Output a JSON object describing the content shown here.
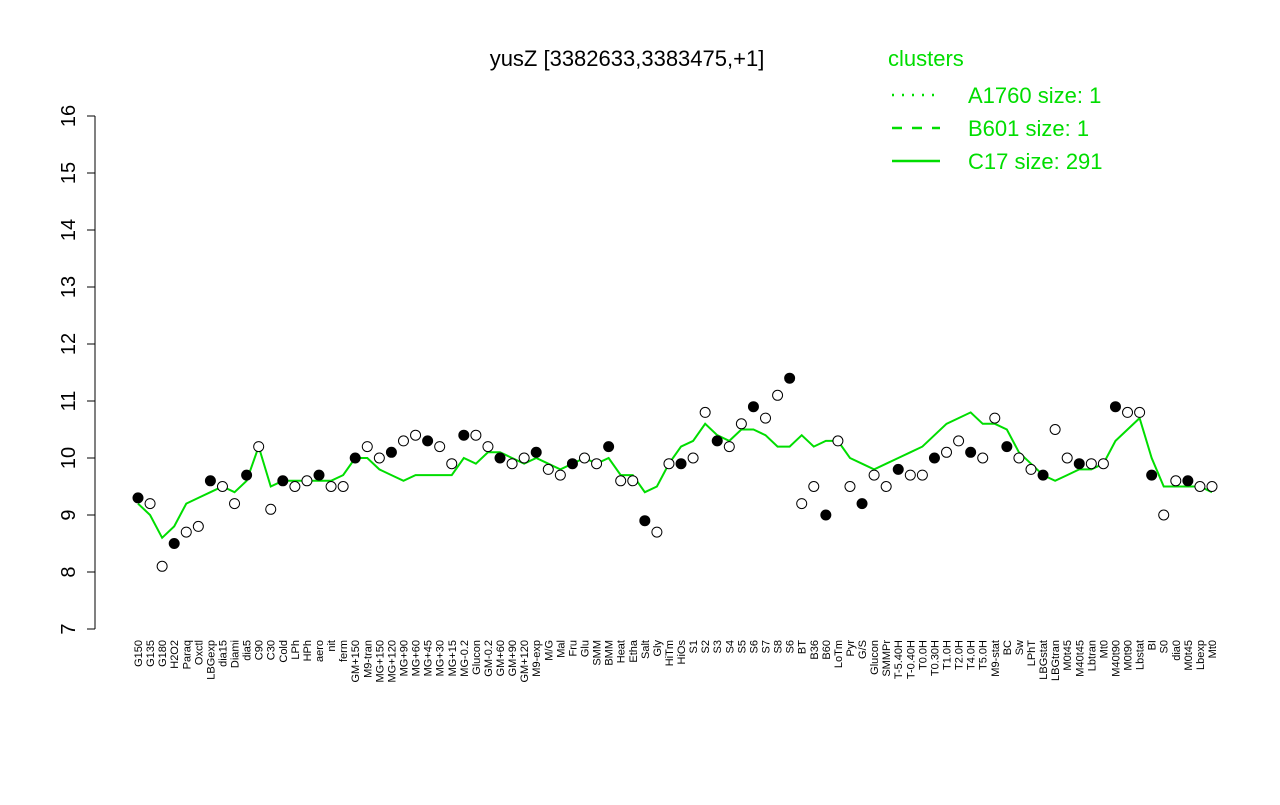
{
  "chart_data": {
    "type": "line",
    "title": "yusZ [3382633,3383475,+1]",
    "legend_title": "clusters",
    "legend": [
      {
        "name": "A1760 size: 1",
        "style": "dotted"
      },
      {
        "name": "B601 size: 1",
        "style": "dashed"
      },
      {
        "name": "C17 size: 291",
        "style": "solid"
      }
    ],
    "color": "#00dd00",
    "point_color": "#000000",
    "categories": [
      "G150",
      "G135",
      "G180",
      "H2O2",
      "Paraq",
      "Oxctl",
      "LBGexp",
      "dia15",
      "Diami",
      "dia5",
      "C90",
      "C30",
      "Cold",
      "LPh",
      "HPh",
      "aero",
      "nit",
      "ferm",
      "GM+150",
      "M9-tran",
      "MG+150",
      "MG+120",
      "MG+90",
      "MG+60",
      "MG+45",
      "MG+30",
      "MG+15",
      "MG-0.2",
      "Glucon",
      "GM-0.2",
      "GM+60",
      "GM+90",
      "GM+120",
      "M9-exp",
      "M/G",
      "Mal",
      "Fru",
      "Glu",
      "SMM",
      "BMM",
      "Heat",
      "Etha",
      "Salt",
      "Gly",
      "HiTm",
      "HiOs",
      "S1",
      "S2",
      "S3",
      "S4",
      "S5",
      "S6",
      "S7",
      "S8",
      "S6",
      "BT",
      "B36",
      "B60",
      "LoTm",
      "Pyr",
      "G/S",
      "Glucon",
      "SMMPr",
      "T-5.40H",
      "T-0.40H",
      "T0.0H",
      "T0.30H",
      "T1.0H",
      "T2.0H",
      "T4.0H",
      "T5.0H",
      "M9-stat",
      "BC",
      "Sw",
      "LPhT",
      "LBGstat",
      "LBGtran",
      "M0t45",
      "M40t45",
      "Lbtran",
      "Mt0",
      "M40t90",
      "M0t90",
      "Lbstat",
      "BI",
      "S0",
      "dia0",
      "M0t45",
      "Lbexp",
      "Mt0"
    ],
    "values": [
      9.3,
      9.2,
      8.1,
      8.5,
      8.7,
      8.8,
      9.6,
      9.5,
      9.2,
      9.7,
      10.2,
      9.1,
      9.6,
      9.5,
      9.6,
      9.7,
      9.5,
      9.5,
      10.0,
      10.2,
      10.0,
      10.1,
      10.3,
      10.4,
      10.3,
      10.2,
      9.9,
      10.4,
      10.4,
      10.2,
      10.0,
      9.9,
      10.0,
      10.1,
      9.8,
      9.7,
      9.9,
      10.0,
      9.9,
      10.2,
      9.6,
      9.6,
      8.9,
      8.7,
      9.9,
      9.9,
      10.0,
      10.8,
      10.3,
      10.2,
      10.6,
      10.9,
      10.7,
      11.1,
      11.4,
      9.2,
      9.5,
      9.0,
      10.3,
      9.5,
      9.2,
      9.7,
      9.5,
      9.8,
      9.7,
      9.7,
      10.0,
      10.1,
      10.3,
      10.1,
      10.0,
      10.7,
      10.2,
      10.0,
      9.8,
      9.7,
      10.5,
      10.0,
      9.9,
      9.9,
      9.9,
      10.9,
      10.8,
      10.8,
      9.7,
      9.0,
      9.6,
      9.6,
      9.5,
      9.5
    ],
    "series": [
      {
        "name": "C17 size: 291",
        "values": [
          9.2,
          9.0,
          8.6,
          8.8,
          9.2,
          9.3,
          9.4,
          9.5,
          9.4,
          9.6,
          10.2,
          9.5,
          9.6,
          9.6,
          9.6,
          9.6,
          9.6,
          9.7,
          10.0,
          10.0,
          9.8,
          9.7,
          9.6,
          9.7,
          9.7,
          9.7,
          9.7,
          10.0,
          9.9,
          10.1,
          10.1,
          10.0,
          9.9,
          10.0,
          9.9,
          9.8,
          9.9,
          10.0,
          9.9,
          10.0,
          9.7,
          9.7,
          9.4,
          9.5,
          9.9,
          10.2,
          10.3,
          10.6,
          10.4,
          10.3,
          10.5,
          10.5,
          10.4,
          10.2,
          10.2,
          10.4,
          10.2,
          10.3,
          10.3,
          10.0,
          9.9,
          9.8,
          9.9,
          10.0,
          10.1,
          10.2,
          10.4,
          10.6,
          10.7,
          10.8,
          10.6,
          10.6,
          10.5,
          10.1,
          9.9,
          9.7,
          9.6,
          9.7,
          9.8,
          9.8,
          9.9,
          10.3,
          10.5,
          10.7,
          10.0,
          9.5,
          9.5,
          9.5,
          9.5,
          9.4
        ]
      }
    ],
    "ylim": [
      7,
      16
    ],
    "yticks": [
      7,
      8,
      9,
      10,
      11,
      12,
      13,
      14,
      15,
      16
    ]
  }
}
